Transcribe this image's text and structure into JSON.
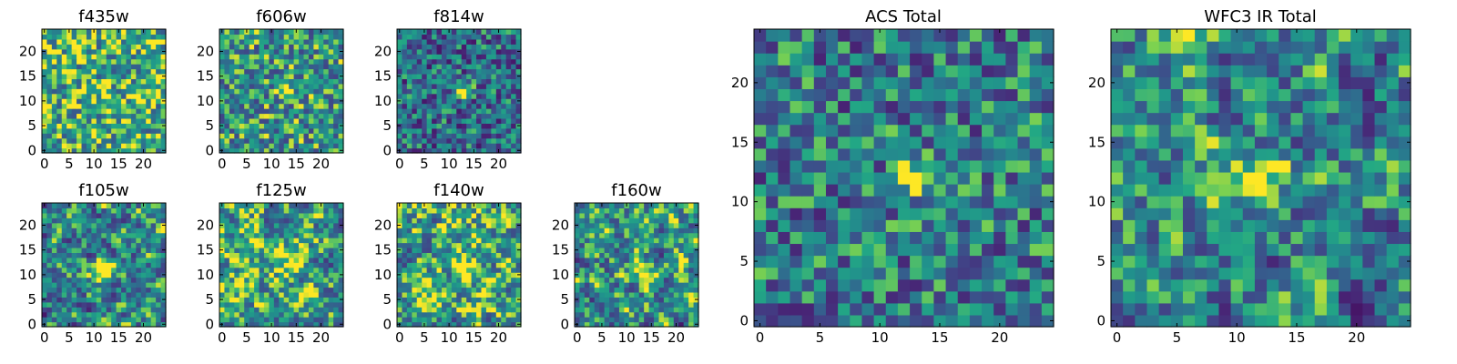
{
  "chart_data": [
    {
      "type": "heatmap",
      "title": "f435w",
      "xlim": [
        0,
        24
      ],
      "ylim": [
        0,
        24
      ],
      "xticks": [
        0,
        5,
        10,
        15,
        20
      ],
      "yticks": [
        0,
        5,
        10,
        15,
        20
      ],
      "colormap": "viridis",
      "seed": 11,
      "peak": [
        12,
        12
      ],
      "peak_strength": 0.15,
      "smooth": 0,
      "base": 0.72
    },
    {
      "type": "heatmap",
      "title": "f606w",
      "xlim": [
        0,
        24
      ],
      "ylim": [
        0,
        24
      ],
      "xticks": [
        0,
        5,
        10,
        15,
        20
      ],
      "yticks": [
        0,
        5,
        10,
        15,
        20
      ],
      "colormap": "viridis",
      "seed": 23,
      "peak": [
        13,
        12
      ],
      "peak_strength": 0.55,
      "smooth": 0,
      "base": 0.62
    },
    {
      "type": "heatmap",
      "title": "f814w",
      "xlim": [
        0,
        24
      ],
      "ylim": [
        0,
        24
      ],
      "xticks": [
        0,
        5,
        10,
        15,
        20
      ],
      "yticks": [
        0,
        5,
        10,
        15,
        20
      ],
      "colormap": "viridis",
      "seed": 37,
      "peak": [
        13,
        12
      ],
      "peak_strength": 0.7,
      "smooth": 0,
      "base": 0.45
    },
    {
      "type": "heatmap",
      "title": "f105w",
      "xlim": [
        0,
        24
      ],
      "ylim": [
        0,
        24
      ],
      "xticks": [
        0,
        5,
        10,
        15,
        20
      ],
      "yticks": [
        0,
        5,
        10,
        15,
        20
      ],
      "colormap": "viridis",
      "seed": 41,
      "peak": [
        12,
        11
      ],
      "peak_strength": 0.7,
      "smooth": 1,
      "base": 0.55
    },
    {
      "type": "heatmap",
      "title": "f125w",
      "xlim": [
        0,
        24
      ],
      "ylim": [
        0,
        24
      ],
      "xticks": [
        0,
        5,
        10,
        15,
        20
      ],
      "yticks": [
        0,
        5,
        10,
        15,
        20
      ],
      "colormap": "viridis",
      "seed": 53,
      "peak": [
        14,
        12
      ],
      "peak_strength": 0.35,
      "smooth": 1,
      "base": 0.68
    },
    {
      "type": "heatmap",
      "title": "f140w",
      "xlim": [
        0,
        24
      ],
      "ylim": [
        0,
        24
      ],
      "xticks": [
        0,
        5,
        10,
        15,
        20
      ],
      "yticks": [
        0,
        5,
        10,
        15,
        20
      ],
      "colormap": "viridis",
      "seed": 67,
      "peak": [
        13,
        12
      ],
      "peak_strength": 0.3,
      "smooth": 1,
      "base": 0.7
    },
    {
      "type": "heatmap",
      "title": "f160w",
      "xlim": [
        0,
        24
      ],
      "ylim": [
        0,
        24
      ],
      "xticks": [
        0,
        5,
        10,
        15,
        20
      ],
      "yticks": [
        0,
        5,
        10,
        15,
        20
      ],
      "colormap": "viridis",
      "seed": 79,
      "peak": [
        13,
        11
      ],
      "peak_strength": 0.45,
      "smooth": 1,
      "base": 0.62
    },
    {
      "type": "heatmap",
      "title": "ACS Total",
      "xlim": [
        0,
        24
      ],
      "ylim": [
        0,
        24
      ],
      "xticks": [
        0,
        5,
        10,
        15,
        20
      ],
      "yticks": [
        0,
        5,
        10,
        15,
        20
      ],
      "colormap": "viridis",
      "seed": 97,
      "peak": [
        13,
        12
      ],
      "peak_strength": 0.6,
      "smooth": 0,
      "base": 0.5
    },
    {
      "type": "heatmap",
      "title": "WFC3 IR Total",
      "xlim": [
        0,
        24
      ],
      "ylim": [
        0,
        24
      ],
      "xticks": [
        0,
        5,
        10,
        15,
        20
      ],
      "yticks": [
        0,
        5,
        10,
        15,
        20
      ],
      "colormap": "viridis",
      "seed": 131,
      "peak": [
        12,
        12
      ],
      "peak_strength": 0.55,
      "smooth": 1,
      "base": 0.55
    }
  ]
}
